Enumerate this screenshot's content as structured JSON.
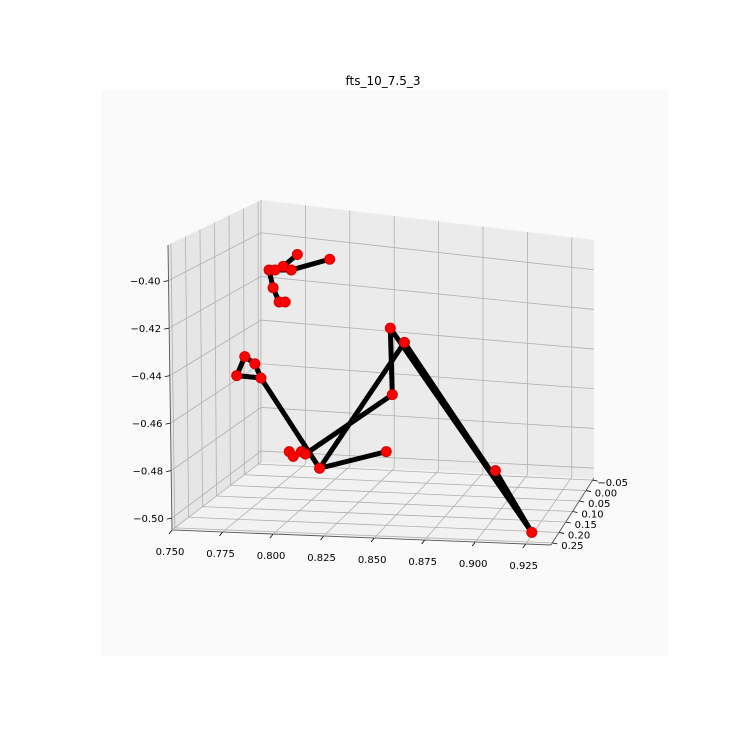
{
  "chart_data": {
    "type": "scatter",
    "title": "fts_10_7.5_3",
    "xlabel": "",
    "ylabel": "",
    "zlabel": "",
    "x_ticks": [
      "0.750",
      "0.775",
      "0.800",
      "0.825",
      "0.850",
      "0.875",
      "0.900",
      "0.925"
    ],
    "y_ticks": [
      "−0.05",
      "0.00",
      "0.05",
      "0.10",
      "0.15",
      "0.20",
      "0.25"
    ],
    "z_ticks": [
      "−0.40",
      "−0.42",
      "−0.44",
      "−0.46",
      "−0.48",
      "−0.50"
    ],
    "xlim": [
      0.75,
      0.94
    ],
    "ylim": [
      -0.06,
      0.26
    ],
    "zlim": [
      -0.505,
      -0.385
    ],
    "grid": true,
    "colors": {
      "pane": "#fafafa",
      "bone": "#000000",
      "joint": "#ff0000"
    },
    "joints": [
      {
        "x": 0.812,
        "z": -0.389
      },
      {
        "x": 0.805,
        "z": -0.394
      },
      {
        "x": 0.798,
        "z": -0.3955
      },
      {
        "x": 0.801,
        "z": -0.3955
      },
      {
        "x": 0.809,
        "z": -0.3955
      },
      {
        "x": 0.828,
        "z": -0.391
      },
      {
        "x": 0.8,
        "z": -0.403
      },
      {
        "x": 0.803,
        "z": -0.409
      },
      {
        "x": 0.806,
        "z": -0.409
      },
      {
        "x": 0.786,
        "z": -0.432
      },
      {
        "x": 0.791,
        "z": -0.435
      },
      {
        "x": 0.782,
        "z": -0.44
      },
      {
        "x": 0.794,
        "z": -0.441
      },
      {
        "x": 0.823,
        "z": -0.479
      },
      {
        "x": 0.856,
        "z": -0.472
      },
      {
        "x": 0.808,
        "z": -0.472
      },
      {
        "x": 0.81,
        "z": -0.474
      },
      {
        "x": 0.814,
        "z": -0.472
      },
      {
        "x": 0.816,
        "z": -0.473
      },
      {
        "x": 0.859,
        "z": -0.448
      },
      {
        "x": 0.865,
        "z": -0.426
      },
      {
        "x": 0.858,
        "z": -0.42
      },
      {
        "x": 0.91,
        "z": -0.48
      },
      {
        "x": 0.928,
        "z": -0.506
      }
    ],
    "bones": [
      [
        0,
        1
      ],
      [
        1,
        2
      ],
      [
        2,
        3
      ],
      [
        3,
        4
      ],
      [
        4,
        5
      ],
      [
        2,
        6
      ],
      [
        6,
        7
      ],
      [
        7,
        8
      ],
      [
        9,
        10
      ],
      [
        9,
        11
      ],
      [
        11,
        12
      ],
      [
        10,
        12
      ],
      [
        12,
        13
      ],
      [
        13,
        14
      ],
      [
        15,
        16
      ],
      [
        16,
        17
      ],
      [
        17,
        18
      ],
      [
        18,
        19
      ],
      [
        19,
        21
      ],
      [
        13,
        20
      ],
      [
        21,
        23
      ],
      [
        20,
        23
      ],
      [
        22,
        23
      ]
    ]
  }
}
